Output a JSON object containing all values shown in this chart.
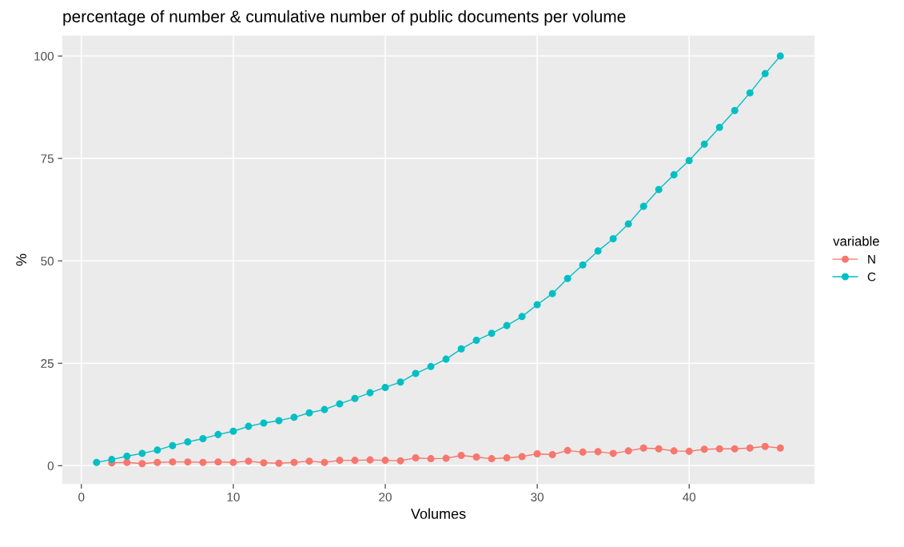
{
  "chart_data": {
    "type": "line",
    "title": "percentage of number & cumulative number of public documents per volume",
    "xlabel": "Volumes",
    "ylabel": "%",
    "legend_title": "variable",
    "x": [
      1,
      2,
      3,
      4,
      5,
      6,
      7,
      8,
      9,
      10,
      11,
      12,
      13,
      14,
      15,
      16,
      17,
      18,
      19,
      20,
      21,
      22,
      23,
      24,
      25,
      26,
      27,
      28,
      29,
      30,
      31,
      32,
      33,
      34,
      35,
      36,
      37,
      38,
      39,
      40,
      41,
      42,
      43,
      44,
      45,
      46
    ],
    "series": [
      {
        "name": "N",
        "color": "#f8766d",
        "values": [
          null,
          0.7,
          0.8,
          0.5,
          0.8,
          0.9,
          0.9,
          0.8,
          0.9,
          0.8,
          1.1,
          0.7,
          0.6,
          0.8,
          1.1,
          0.8,
          1.3,
          1.3,
          1.4,
          1.3,
          1.2,
          1.9,
          1.7,
          1.8,
          2.5,
          2.1,
          1.7,
          1.9,
          2.2,
          2.9,
          2.7,
          3.7,
          3.3,
          3.4,
          3.0,
          3.6,
          4.3,
          4.1,
          3.6,
          3.5,
          4.0,
          4.1,
          4.1,
          4.3,
          4.7,
          4.3
        ]
      },
      {
        "name": "C",
        "color": "#00bfc4",
        "values": [
          0.8,
          1.5,
          2.3,
          3.0,
          3.8,
          4.9,
          5.8,
          6.6,
          7.6,
          8.4,
          9.6,
          10.4,
          11.0,
          11.8,
          12.9,
          13.7,
          15.1,
          16.4,
          17.8,
          19.1,
          20.4,
          22.5,
          24.2,
          26.0,
          28.5,
          30.6,
          32.3,
          34.2,
          36.4,
          39.3,
          42.0,
          45.7,
          49.0,
          52.4,
          55.4,
          59.0,
          63.3,
          67.4,
          71.0,
          74.5,
          78.5,
          82.6,
          86.7,
          91.0,
          95.7,
          100
        ]
      }
    ],
    "xlim": [
      -1.25,
      48.25
    ],
    "xticks": [
      0,
      10,
      20,
      30,
      40
    ],
    "ylim": [
      -4.5,
      105
    ],
    "yticks": [
      0,
      25,
      50,
      75,
      100
    ],
    "grid": true,
    "legend": "right",
    "marker": "circle",
    "line_style": "solid"
  }
}
